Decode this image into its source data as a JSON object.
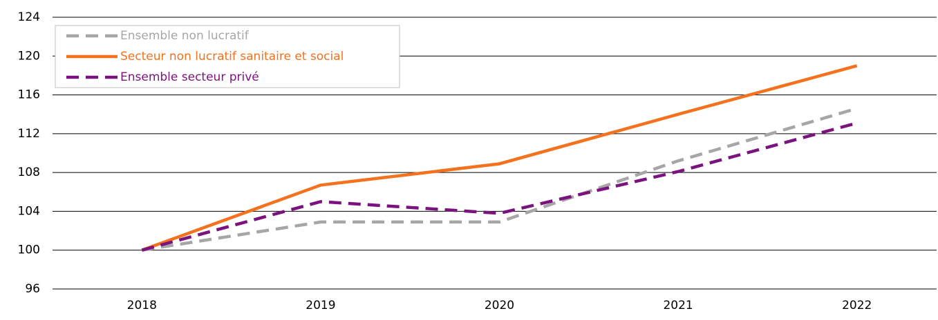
{
  "chart_data": {
    "type": "line",
    "categories": [
      "2018",
      "2019",
      "2020",
      "2021",
      "2022"
    ],
    "series": [
      {
        "name": "Ensemble non lucratif",
        "color": "#a6a6a6",
        "dashed": true,
        "values": [
          100,
          102.9,
          102.9,
          109.2,
          114.6
        ]
      },
      {
        "name": "Secteur non lucratif sanitaire et social",
        "color": "#f4721e",
        "dashed": false,
        "values": [
          100,
          106.7,
          108.9,
          114.0,
          119.0
        ]
      },
      {
        "name": "Ensemble secteur privé",
        "color": "#7b137f",
        "dashed": true,
        "values": [
          100,
          105.0,
          103.8,
          108.1,
          113.1
        ]
      }
    ],
    "ylim": [
      96,
      124
    ],
    "yticks": [
      96,
      100,
      104,
      108,
      112,
      116,
      120,
      124
    ],
    "grid": true,
    "legend": "top-left"
  }
}
